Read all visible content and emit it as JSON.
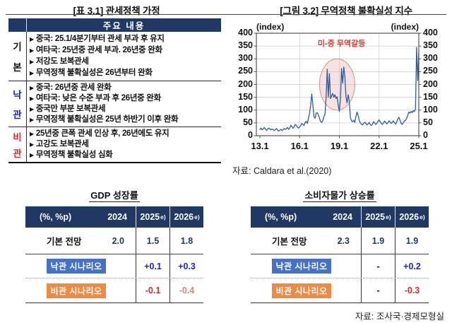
{
  "colors": {
    "navy": "#1f3864",
    "optimistic_bg": "#4472c4",
    "pessimistic_bg": "#ed8b45",
    "pessimistic_text": "#d22b2b",
    "pessimistic_text_light": "#e87f7f",
    "label_blue": "#2222cc",
    "label_red": "#e03030",
    "line": "#2e5c9e",
    "annotation_red": "#e03a2f"
  },
  "titles": {
    "left": "[표 3.1] 관세정책 가정",
    "right": "[그림 3.2] 무역정책 불확실성 지수"
  },
  "table31": {
    "header": "주요 내용",
    "bullet": "▶",
    "rows": [
      {
        "label": "기본",
        "label_lines": [
          "기",
          "본"
        ],
        "items": [
          "중국: 25.1/4분기부터 관세 부과 후 유지",
          "여타국: 25년중 관세 부과. 26년중 완화",
          "저강도 보복관세",
          "무역정책 불확실성은 26년부터 완화"
        ]
      },
      {
        "label": "낙관",
        "label_lines": [
          "낙",
          "관"
        ],
        "items": [
          "중국: 26년중 관세 완화",
          "여타국: 낮은 수준 부과 후 26년중 완화",
          "중국만 부분 보복관세",
          "무역정책 불확실성은 25년 하반기 이후 완화"
        ]
      },
      {
        "label": "비관",
        "label_lines": [
          "비",
          "관"
        ],
        "items": [
          "25년중 큰폭 관세 인상 후, 26년에도 유지",
          "고강도 보복관세",
          "무역정책 불확실성 심화"
        ]
      }
    ]
  },
  "chart_data": {
    "type": "line",
    "title": "[그림 3.2] 무역정책 불확실성 지수",
    "unit_label_left": "(index)",
    "unit_label_right": "(index)",
    "ylim": [
      0,
      400
    ],
    "y_ticks": [
      0,
      50,
      100,
      150,
      200,
      250,
      300,
      350,
      400
    ],
    "x_tick_labels": [
      "13.1",
      "16.1",
      "19.1",
      "22.1",
      "25.1"
    ],
    "x_tick_months": [
      0,
      36,
      72,
      108,
      144
    ],
    "grid_months": [
      36,
      72,
      108
    ],
    "frequency": "monthly",
    "x_start": "2013.1",
    "x_end": "2025.1",
    "grid": true,
    "series": [
      {
        "name": "무역정책 불확실성 지수",
        "values": [
          24,
          30,
          23,
          27,
          32,
          26,
          21,
          25,
          30,
          27,
          23,
          26,
          24,
          20,
          24,
          28,
          22,
          18,
          21,
          25,
          20,
          24,
          28,
          25,
          27,
          32,
          25,
          30,
          41,
          36,
          29,
          34,
          44,
          39,
          33,
          30,
          34,
          40,
          48,
          44,
          40,
          52,
          56,
          48,
          68,
          88,
          120,
          163,
          120,
          75,
          68,
          88,
          90,
          80,
          68,
          55,
          52,
          58,
          75,
          85,
          150,
          260,
          150,
          242,
          145,
          155,
          165,
          150,
          160,
          145,
          152,
          118,
          95,
          145,
          262,
          205,
          268,
          230,
          152,
          128,
          160,
          135,
          72,
          58,
          55,
          60,
          52,
          75,
          92,
          80,
          60,
          50,
          45,
          42,
          48,
          52,
          48,
          42,
          46,
          52,
          44,
          40,
          45,
          55,
          50,
          44,
          48,
          56,
          62,
          55,
          48,
          44,
          50,
          57,
          52,
          46,
          51,
          58,
          54,
          48,
          52,
          58,
          50,
          45,
          55,
          65,
          72,
          60,
          48,
          44,
          52,
          58,
          60,
          68,
          80,
          92,
          88,
          95,
          90,
          98,
          94,
          105,
          345,
          215,
          325
        ]
      }
    ],
    "annotation": {
      "label": "미-중 무역갈등",
      "label_month": 74,
      "label_value": 350,
      "ellipse": {
        "cx_month": 70,
        "cy_value": 200,
        "rx_months": 16,
        "ry_value": 100
      }
    },
    "source": "자료: Caldara et al.(2020)"
  },
  "gdp_table": {
    "title": "GDP 성장률",
    "header": {
      "label": "(%, %p)",
      "col2024": "2024",
      "col2025": {
        "base": "2025",
        "sup": "e)"
      },
      "col2026": {
        "base": "2026",
        "sup": "e)"
      }
    },
    "rows": [
      {
        "name": "기본 전망",
        "v2024": "2.0",
        "v2025": "1.5",
        "v2026": "1.8"
      },
      {
        "name": "낙관 시나리오",
        "v2025": "+0.1",
        "v2026": "+0.3"
      },
      {
        "name": "비관 시나리오",
        "v2025": "-0.1",
        "v2026": "-0.4"
      }
    ]
  },
  "cpi_table": {
    "title": "소비자물가 상승률",
    "header": {
      "label": "(%, %p)",
      "col2024": "2024",
      "col2025": {
        "base": "2025",
        "sup": "e)"
      },
      "col2026": {
        "base": "2026",
        "sup": "e)"
      }
    },
    "rows": [
      {
        "name": "기본 전망",
        "v2024": "2.3",
        "v2025": "1.9",
        "v2026": "1.9"
      },
      {
        "name": "낙관 시나리오",
        "v2025": "-",
        "v2026": "+0.2"
      },
      {
        "name": "비관 시나리오",
        "v2025": "-",
        "v2026": "-0.3"
      }
    ]
  },
  "sources": {
    "chart": "자료: Caldara et al.(2020)",
    "tables": "자료: 조사국·경제모형실"
  }
}
